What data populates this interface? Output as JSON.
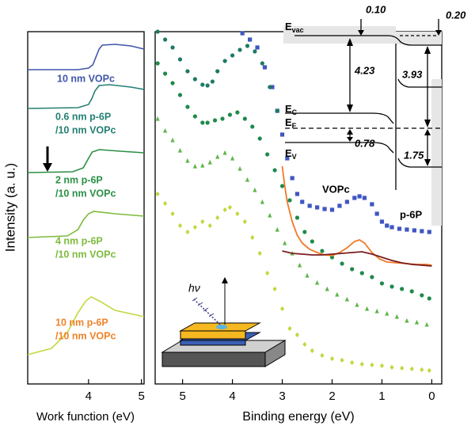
{
  "chart_data": [
    {
      "type": "line",
      "xlabel": "Work function (eV)",
      "ylabel": "Intensity (a. u.)",
      "xlim": [
        2.85,
        5.05
      ],
      "ylim": [
        0,
        445
      ],
      "xticks": [
        4,
        5
      ],
      "series": [
        {
          "name": [
            "10 nm VOPc"
          ],
          "color": "#3f56a8",
          "label_color": "#3f56a8",
          "x": [
            2.85,
            3.8,
            4.0,
            4.08,
            4.14,
            4.2,
            4.26,
            4.5,
            4.8,
            5.05
          ],
          "values": [
            397,
            397,
            399,
            403,
            413,
            423,
            428,
            429,
            427,
            423
          ]
        },
        {
          "name": [
            "0.6 nm p-6P",
            "/10 nm VOPc"
          ],
          "color": "#237f72",
          "label_color": "#237f72",
          "x": [
            2.85,
            3.8,
            4.0,
            4.06,
            4.12,
            4.2,
            4.4,
            4.8,
            5.05
          ],
          "values": [
            348,
            349,
            353,
            360,
            370,
            377,
            378,
            375,
            372
          ]
        },
        {
          "name": [
            "2 nm p-6P",
            "/10 nm VOPc"
          ],
          "color": "#2a8f45",
          "label_color": "#2a8f45",
          "x": [
            2.85,
            3.7,
            3.9,
            4.0,
            4.07,
            4.2,
            4.6,
            5.05
          ],
          "values": [
            267,
            268,
            273,
            285,
            293,
            296,
            294,
            292
          ]
        },
        {
          "name": [
            "4 nm p-6P",
            "/10 nm VOPc"
          ],
          "color": "#7dbb3d",
          "label_color": "#7dbb3d",
          "x": [
            2.85,
            3.6,
            3.8,
            3.9,
            4.0,
            4.1,
            4.5,
            5.05
          ],
          "values": [
            185,
            187,
            195,
            207,
            215,
            218,
            215,
            212
          ]
        },
        {
          "name": [
            "10 nm p-6P",
            "/10 nm VOPc"
          ],
          "color": "#c5d63f",
          "label_color": "#f0822a",
          "x": [
            2.85,
            3.3,
            3.6,
            3.8,
            3.95,
            4.05,
            4.2,
            4.5,
            5.05
          ],
          "values": [
            37,
            45,
            65,
            90,
            105,
            110,
            105,
            93,
            85
          ]
        }
      ]
    },
    {
      "type": "scatter",
      "xlabel": "Binding energy (eV)",
      "xlim": [
        5.55,
        -0.2
      ],
      "ylim": [
        0,
        445
      ],
      "xticks": [
        5,
        4,
        3,
        2,
        1,
        0
      ],
      "series": [
        {
          "color": "#3f56c0",
          "marker": "square",
          "x": [
            3.8,
            3.65,
            3.5,
            3.35,
            3.2,
            3.1,
            3.0,
            2.9,
            2.8,
            2.7,
            2.6,
            2.45,
            2.3,
            2.15,
            2.0,
            1.85,
            1.7,
            1.55,
            1.45,
            1.35,
            1.2,
            1.1,
            1.0,
            0.9,
            0.8,
            0.65,
            0.5,
            0.35,
            0.2,
            0.05
          ],
          "values": [
            443,
            435,
            425,
            400,
            375,
            345,
            315,
            285,
            260,
            240,
            230,
            225,
            223,
            221,
            220,
            225,
            230,
            235,
            237,
            235,
            227,
            215,
            205,
            200,
            198,
            196,
            195,
            194,
            193,
            192
          ]
        },
        {
          "color": "#1d7a64",
          "marker": "circle",
          "x": [
            5.5,
            5.35,
            5.2,
            5.05,
            4.9,
            4.75,
            4.6,
            4.5,
            4.4,
            4.3,
            4.15,
            4.0,
            3.85,
            3.7,
            3.55,
            3.4,
            3.25,
            3.1
          ],
          "values": [
            445,
            435,
            425,
            410,
            395,
            385,
            378,
            377,
            382,
            395,
            408,
            415,
            422,
            427,
            420,
            405,
            375,
            345
          ]
        },
        {
          "color": "#1f8a4a",
          "marker": "hexagon",
          "x": [
            5.5,
            5.35,
            5.2,
            5.05,
            4.9,
            4.75,
            4.6,
            4.5,
            4.35,
            4.2,
            4.05,
            3.9,
            3.75,
            3.6,
            3.45,
            3.3,
            3.15,
            3.0,
            2.85,
            2.7,
            2.55,
            2.4,
            2.2,
            2.0,
            1.8,
            1.6,
            1.4,
            1.2,
            1.0,
            0.8,
            0.6,
            0.4,
            0.2,
            0.05
          ],
          "values": [
            405,
            392,
            380,
            365,
            350,
            338,
            330,
            330,
            333,
            335,
            340,
            343,
            335,
            325,
            310,
            290,
            270,
            250,
            232,
            210,
            192,
            180,
            168,
            160,
            152,
            145,
            140,
            135,
            127,
            123,
            120,
            117,
            112,
            108
          ]
        },
        {
          "color": "#5fb54a",
          "marker": "triangle",
          "x": [
            5.5,
            5.35,
            5.2,
            5.05,
            4.9,
            4.75,
            4.6,
            4.45,
            4.3,
            4.15,
            4.0,
            3.85,
            3.7,
            3.55,
            3.4,
            3.25,
            3.1,
            2.95,
            2.8,
            2.65,
            2.5,
            2.3,
            2.1,
            1.9,
            1.7,
            1.5,
            1.3,
            1.1,
            0.9,
            0.7,
            0.5,
            0.3,
            0.1
          ],
          "values": [
            335,
            320,
            308,
            295,
            282,
            275,
            276,
            280,
            287,
            292,
            285,
            272,
            258,
            245,
            230,
            213,
            195,
            178,
            165,
            150,
            137,
            128,
            120,
            113,
            107,
            100,
            95,
            92,
            89,
            85,
            80,
            78,
            75
          ]
        },
        {
          "color": "#c3d63c",
          "marker": "diamond",
          "x": [
            5.5,
            5.35,
            5.2,
            5.05,
            4.9,
            4.75,
            4.6,
            4.45,
            4.3,
            4.15,
            4.05,
            3.9,
            3.75,
            3.6,
            3.45,
            3.3,
            3.15,
            3.0,
            2.85,
            2.7,
            2.55,
            2.4,
            2.2,
            2.0,
            1.8,
            1.6,
            1.4,
            1.2,
            1.0,
            0.8,
            0.6,
            0.4,
            0.2,
            0.05
          ],
          "values": [
            240,
            228,
            215,
            200,
            192,
            198,
            205,
            200,
            210,
            220,
            223,
            215,
            205,
            185,
            165,
            140,
            120,
            95,
            70,
            62,
            50,
            42,
            36,
            32,
            30,
            27,
            25,
            24,
            23,
            21,
            20,
            19,
            18,
            17
          ]
        },
        {
          "color": "#f07a28",
          "marker": "line",
          "x": [
            3.0,
            2.95,
            2.9,
            2.8,
            2.7,
            2.6,
            2.45,
            2.3,
            2.15,
            2.0,
            1.85,
            1.7,
            1.55,
            1.45,
            1.35,
            1.2,
            1.05,
            0.9,
            0.7,
            0.5,
            0.3,
            0.1,
            0.0
          ],
          "values": [
            275,
            250,
            230,
            205,
            188,
            178,
            170,
            166,
            163,
            162,
            166,
            172,
            180,
            182,
            178,
            166,
            158,
            154,
            153,
            152,
            151,
            151,
            150
          ]
        },
        {
          "color": "#7a1e1e",
          "marker": "line",
          "x": [
            3.0,
            2.8,
            2.6,
            2.4,
            2.2,
            2.0,
            1.8,
            1.6,
            1.4,
            1.2,
            1.0,
            0.8,
            0.6,
            0.4,
            0.2,
            0.0
          ],
          "values": [
            168,
            165,
            164,
            163,
            163,
            164,
            165,
            166,
            167,
            164,
            160,
            156,
            153,
            151,
            150,
            149
          ]
        }
      ]
    }
  ],
  "energy_diagram": {
    "levels": [
      {
        "symbol": "E",
        "subscript": "vac"
      },
      {
        "symbol": "E",
        "subscript": "C"
      },
      {
        "symbol": "E",
        "subscript": "F"
      },
      {
        "symbol": "E",
        "subscript": "V"
      }
    ],
    "numbers": [
      "0.10",
      "0.20",
      "4.23",
      "3.93",
      "0.78",
      "1.75"
    ],
    "materials": [
      "VOPc",
      "p-6P"
    ]
  },
  "inset": {
    "photon": "hν"
  }
}
